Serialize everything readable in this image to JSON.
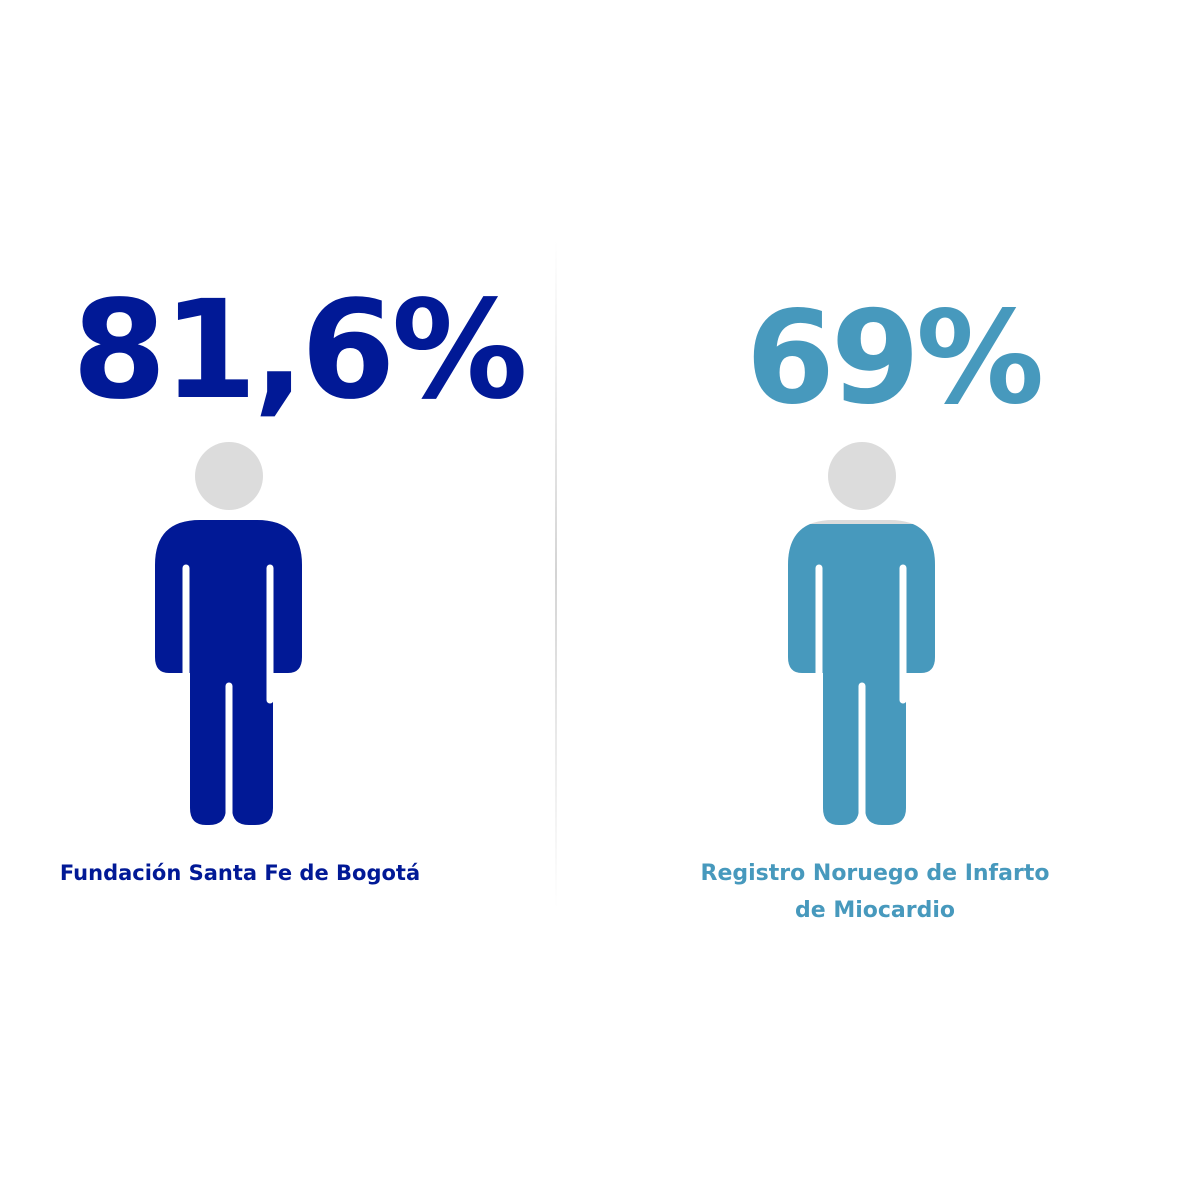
{
  "chart_data": {
    "type": "pictogram",
    "items": [
      {
        "label": "Fundación Santa Fe de Bogotá",
        "value_text": "81,6%",
        "value": 81.6,
        "color": "#011996"
      },
      {
        "label": "Registro Noruego de Infarto de Miocardio",
        "label_lines": [
          "Registro Noruego de Infarto",
          "de Miocardio"
        ],
        "value_text": "69%",
        "value": 69,
        "color": "#4799bd"
      }
    ],
    "empty_color": "#dcdcdc",
    "divider_color": "#d9d9d9"
  }
}
